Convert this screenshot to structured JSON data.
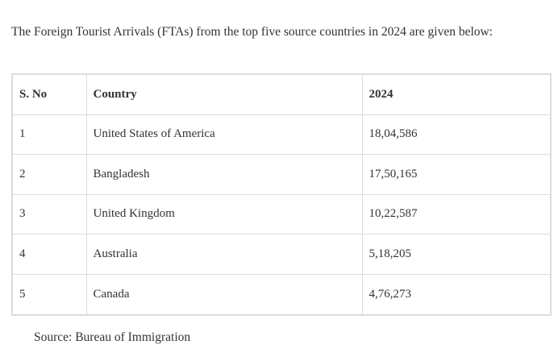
{
  "intro": "The Foreign Tourist Arrivals (FTAs) from the top five source countries in 2024 are given below:",
  "table": {
    "headers": [
      "S. No",
      "Country",
      "2024"
    ],
    "rows": [
      [
        "1",
        "United States of America",
        "18,04,586"
      ],
      [
        "2",
        "Bangladesh",
        "17,50,165"
      ],
      [
        "3",
        "United Kingdom",
        "10,22,587"
      ],
      [
        "4",
        "Australia",
        "5,18,205"
      ],
      [
        "5",
        "Canada",
        "4,76,273"
      ]
    ]
  },
  "source": "Source: Bureau of Immigration"
}
